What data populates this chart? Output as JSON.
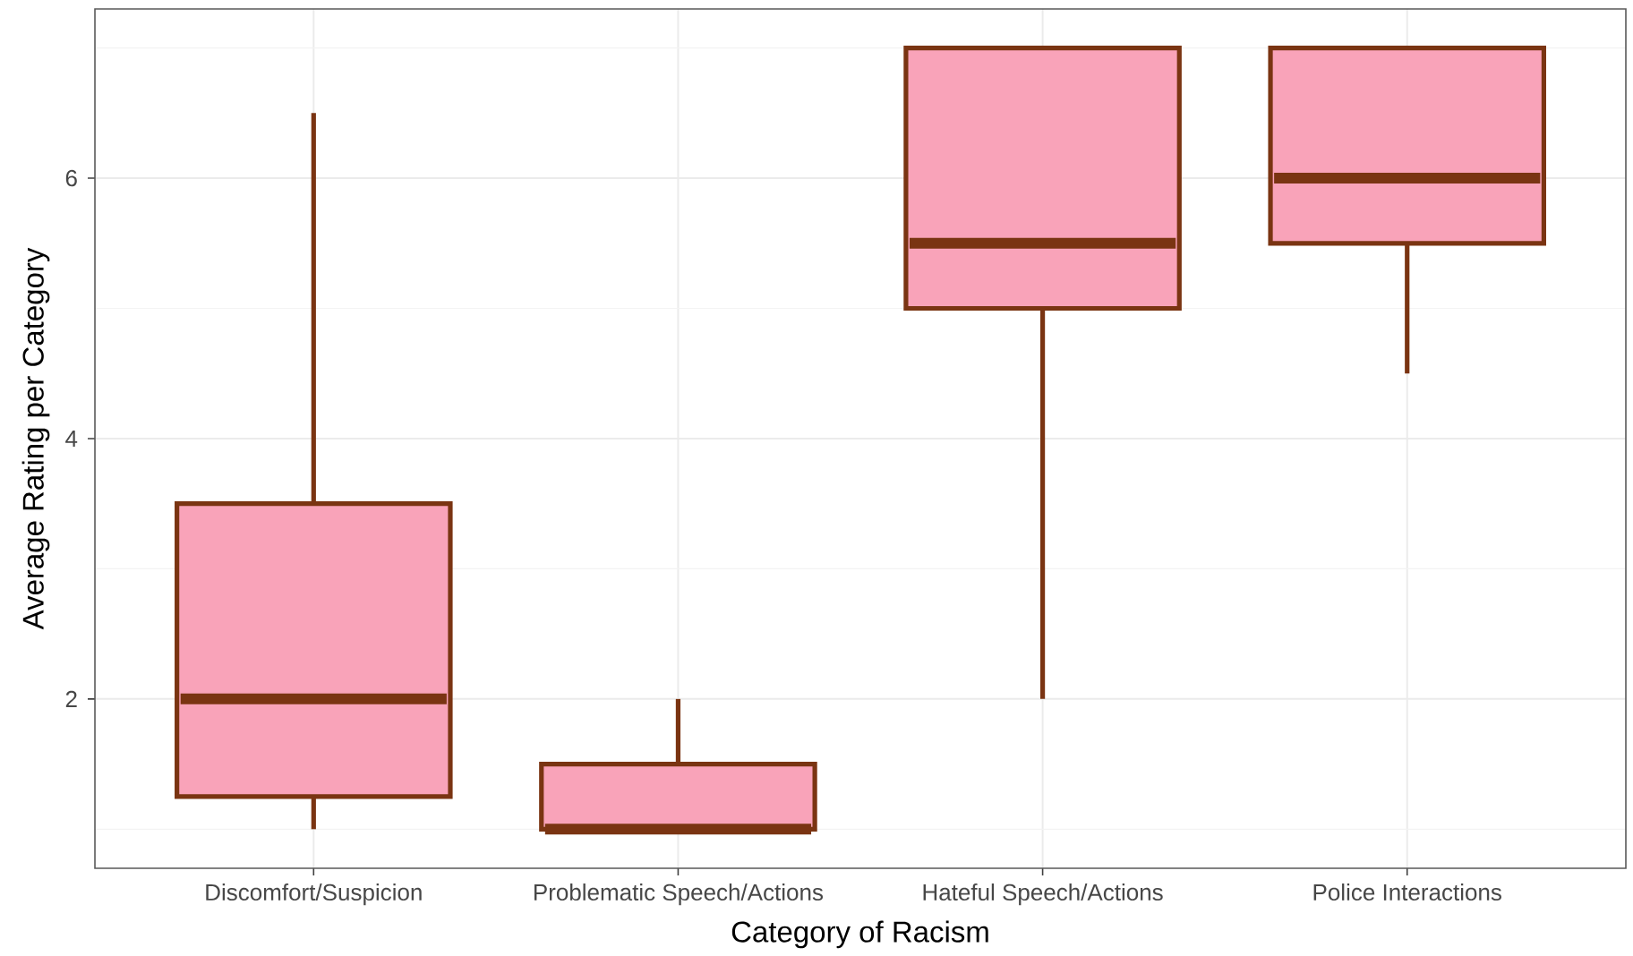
{
  "chart_data": {
    "type": "box",
    "xlabel": "Category of Racism",
    "ylabel": "Average Rating per Category",
    "categories": [
      "Discomfort/Suspicion",
      "Problematic Speech/Actions",
      "Hateful Speech/Actions",
      "Police Interactions"
    ],
    "boxes": [
      {
        "low": 1,
        "q1": 1.25,
        "median": 2,
        "q3": 3.5,
        "high": 6.5
      },
      {
        "low": 1,
        "q1": 1,
        "median": 1,
        "q3": 1.5,
        "high": 2
      },
      {
        "low": 2,
        "q1": 5,
        "median": 5.5,
        "q3": 7,
        "high": 7
      },
      {
        "low": 4.5,
        "q1": 5.5,
        "median": 6,
        "q3": 7,
        "high": 7
      }
    ],
    "color": "#f9a3b9",
    "ylim": [
      0.7,
      7.3
    ],
    "yticks": [
      2,
      4,
      6
    ],
    "grid": true
  }
}
